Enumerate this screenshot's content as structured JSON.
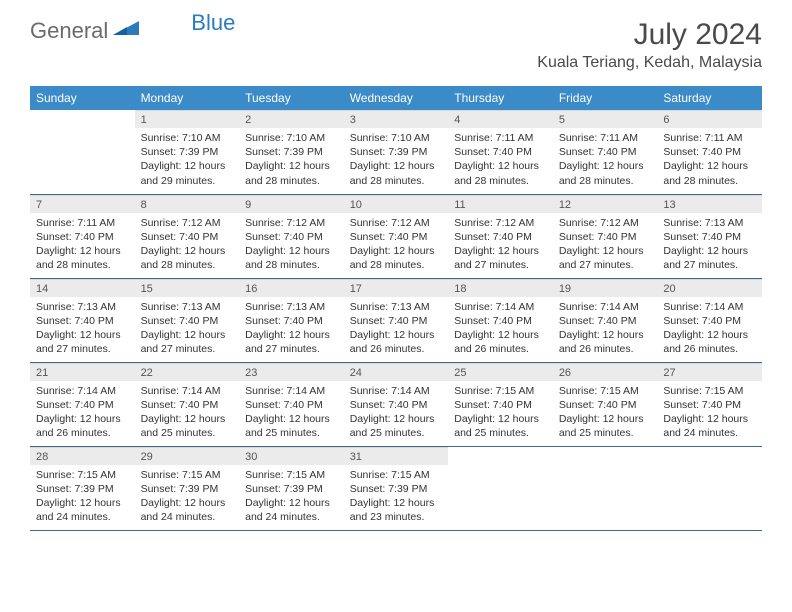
{
  "brand": {
    "part1": "General",
    "part2": "Blue"
  },
  "title": "July 2024",
  "location": "Kuala Teriang, Kedah, Malaysia",
  "colors": {
    "header_bg": "#3b8bc9",
    "header_text": "#ffffff",
    "daynum_bg": "#ebebeb",
    "row_border": "#3b6a94",
    "brand_grey": "#6b6b6b",
    "brand_blue": "#2b7bbf"
  },
  "day_names": [
    "Sunday",
    "Monday",
    "Tuesday",
    "Wednesday",
    "Thursday",
    "Friday",
    "Saturday"
  ],
  "first_weekday": 1,
  "days": [
    {
      "n": 1,
      "sr": "7:10 AM",
      "ss": "7:39 PM",
      "dl": "12 hours and 29 minutes."
    },
    {
      "n": 2,
      "sr": "7:10 AM",
      "ss": "7:39 PM",
      "dl": "12 hours and 28 minutes."
    },
    {
      "n": 3,
      "sr": "7:10 AM",
      "ss": "7:39 PM",
      "dl": "12 hours and 28 minutes."
    },
    {
      "n": 4,
      "sr": "7:11 AM",
      "ss": "7:40 PM",
      "dl": "12 hours and 28 minutes."
    },
    {
      "n": 5,
      "sr": "7:11 AM",
      "ss": "7:40 PM",
      "dl": "12 hours and 28 minutes."
    },
    {
      "n": 6,
      "sr": "7:11 AM",
      "ss": "7:40 PM",
      "dl": "12 hours and 28 minutes."
    },
    {
      "n": 7,
      "sr": "7:11 AM",
      "ss": "7:40 PM",
      "dl": "12 hours and 28 minutes."
    },
    {
      "n": 8,
      "sr": "7:12 AM",
      "ss": "7:40 PM",
      "dl": "12 hours and 28 minutes."
    },
    {
      "n": 9,
      "sr": "7:12 AM",
      "ss": "7:40 PM",
      "dl": "12 hours and 28 minutes."
    },
    {
      "n": 10,
      "sr": "7:12 AM",
      "ss": "7:40 PM",
      "dl": "12 hours and 28 minutes."
    },
    {
      "n": 11,
      "sr": "7:12 AM",
      "ss": "7:40 PM",
      "dl": "12 hours and 27 minutes."
    },
    {
      "n": 12,
      "sr": "7:12 AM",
      "ss": "7:40 PM",
      "dl": "12 hours and 27 minutes."
    },
    {
      "n": 13,
      "sr": "7:13 AM",
      "ss": "7:40 PM",
      "dl": "12 hours and 27 minutes."
    },
    {
      "n": 14,
      "sr": "7:13 AM",
      "ss": "7:40 PM",
      "dl": "12 hours and 27 minutes."
    },
    {
      "n": 15,
      "sr": "7:13 AM",
      "ss": "7:40 PM",
      "dl": "12 hours and 27 minutes."
    },
    {
      "n": 16,
      "sr": "7:13 AM",
      "ss": "7:40 PM",
      "dl": "12 hours and 27 minutes."
    },
    {
      "n": 17,
      "sr": "7:13 AM",
      "ss": "7:40 PM",
      "dl": "12 hours and 26 minutes."
    },
    {
      "n": 18,
      "sr": "7:14 AM",
      "ss": "7:40 PM",
      "dl": "12 hours and 26 minutes."
    },
    {
      "n": 19,
      "sr": "7:14 AM",
      "ss": "7:40 PM",
      "dl": "12 hours and 26 minutes."
    },
    {
      "n": 20,
      "sr": "7:14 AM",
      "ss": "7:40 PM",
      "dl": "12 hours and 26 minutes."
    },
    {
      "n": 21,
      "sr": "7:14 AM",
      "ss": "7:40 PM",
      "dl": "12 hours and 26 minutes."
    },
    {
      "n": 22,
      "sr": "7:14 AM",
      "ss": "7:40 PM",
      "dl": "12 hours and 25 minutes."
    },
    {
      "n": 23,
      "sr": "7:14 AM",
      "ss": "7:40 PM",
      "dl": "12 hours and 25 minutes."
    },
    {
      "n": 24,
      "sr": "7:14 AM",
      "ss": "7:40 PM",
      "dl": "12 hours and 25 minutes."
    },
    {
      "n": 25,
      "sr": "7:15 AM",
      "ss": "7:40 PM",
      "dl": "12 hours and 25 minutes."
    },
    {
      "n": 26,
      "sr": "7:15 AM",
      "ss": "7:40 PM",
      "dl": "12 hours and 25 minutes."
    },
    {
      "n": 27,
      "sr": "7:15 AM",
      "ss": "7:40 PM",
      "dl": "12 hours and 24 minutes."
    },
    {
      "n": 28,
      "sr": "7:15 AM",
      "ss": "7:39 PM",
      "dl": "12 hours and 24 minutes."
    },
    {
      "n": 29,
      "sr": "7:15 AM",
      "ss": "7:39 PM",
      "dl": "12 hours and 24 minutes."
    },
    {
      "n": 30,
      "sr": "7:15 AM",
      "ss": "7:39 PM",
      "dl": "12 hours and 24 minutes."
    },
    {
      "n": 31,
      "sr": "7:15 AM",
      "ss": "7:39 PM",
      "dl": "12 hours and 23 minutes."
    }
  ],
  "labels": {
    "sunrise": "Sunrise:",
    "sunset": "Sunset:",
    "daylight": "Daylight:"
  }
}
